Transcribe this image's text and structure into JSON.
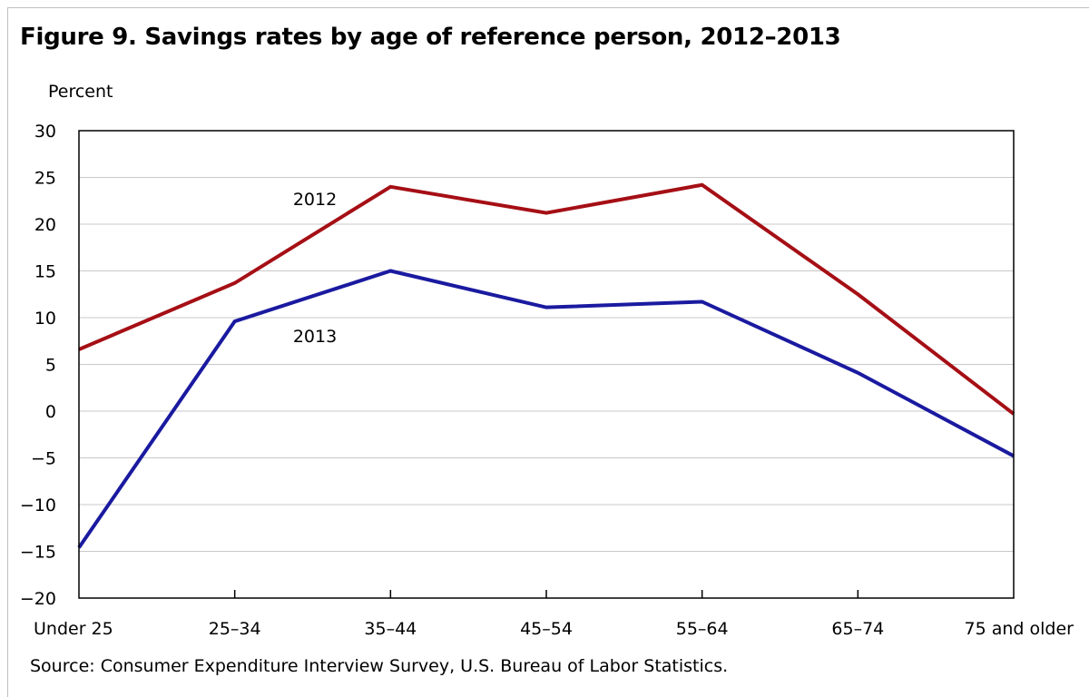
{
  "chart_data": {
    "type": "line",
    "title": "Figure 9.  Savings rates by age of reference person, 2012–2013",
    "ylabel": "Percent",
    "xlabel": "",
    "categories": [
      "Under 25",
      "25–34",
      "35–44",
      "45–54",
      "55–64",
      "65–74",
      "75 and older"
    ],
    "series": [
      {
        "name": "2012",
        "color": "#a50f15",
        "values": [
          6.6,
          13.7,
          24.0,
          21.2,
          24.2,
          12.5,
          -0.3
        ]
      },
      {
        "name": "2013",
        "color": "#1a1aa0",
        "values": [
          -14.6,
          9.6,
          15.0,
          11.1,
          11.7,
          4.1,
          -4.8
        ]
      }
    ],
    "ylim": [
      -20,
      30
    ],
    "yticks": [
      "30",
      "25",
      "20",
      "15",
      "10",
      "5",
      "0",
      "−5",
      "−10",
      "−15",
      "−20"
    ],
    "grid": true,
    "source": "Source: Consumer Expenditure Interview Survey, U.S. Bureau of Labor Statistics."
  }
}
